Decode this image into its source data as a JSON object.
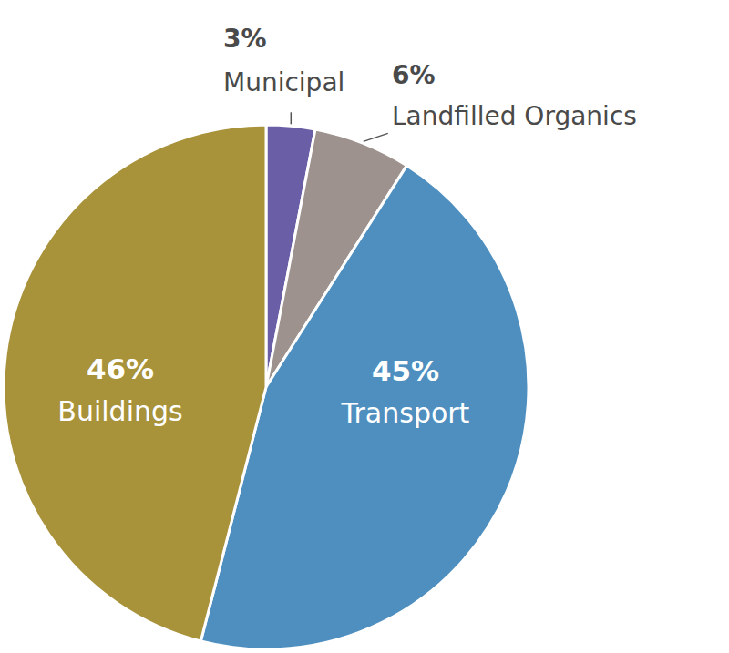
{
  "chart_data": {
    "type": "pie",
    "categories": [
      "Municipal",
      "Landfilled Organics",
      "Transport",
      "Buildings"
    ],
    "values": [
      3,
      6,
      45,
      46
    ],
    "value_labels": [
      "3%",
      "6%",
      "45%",
      "46%"
    ],
    "colors": [
      "#6a5fa6",
      "#9d928d",
      "#4e8fbf",
      "#a8923a"
    ],
    "data_labels": true
  }
}
